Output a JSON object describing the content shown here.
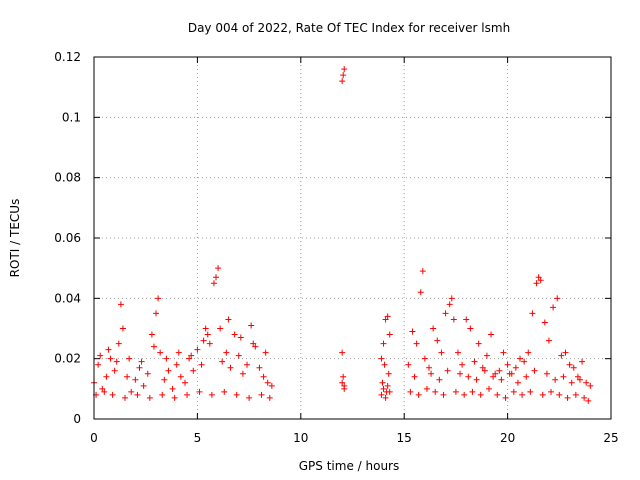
{
  "chart_data": {
    "type": "scatter",
    "title": "Day 004 of 2022, Rate Of TEC Index for receiver lsmh",
    "xlabel": "GPS time / hours",
    "ylabel": "ROTI / TECUs",
    "xlim": [
      0,
      25
    ],
    "ylim": [
      0,
      0.12
    ],
    "xticks": [
      0,
      5,
      10,
      15,
      20,
      25
    ],
    "yticks": [
      0,
      0.02,
      0.04,
      0.06,
      0.08,
      0.1,
      0.12
    ],
    "xtick_labels": [
      "0",
      "5",
      "10",
      "15",
      "20",
      "25"
    ],
    "ytick_labels": [
      "0",
      "0.02",
      "0.04",
      "0.06",
      "0.08",
      "0.1",
      "0.12"
    ],
    "grid": true,
    "marker": "+",
    "color": "#ff0000",
    "series": [
      {
        "x": [
          0.0,
          0.2,
          0.4,
          0.6,
          0.8,
          1.0,
          1.2,
          1.3,
          1.4,
          1.6,
          1.8,
          2.0,
          2.2,
          2.4,
          2.6,
          2.8,
          3.0,
          3.1,
          3.2,
          3.4,
          3.6,
          3.8,
          4.0,
          4.2,
          4.4,
          4.6,
          4.8,
          5.0,
          5.2,
          5.4,
          5.6,
          5.8,
          5.9,
          6.0,
          6.1,
          6.2,
          6.4,
          6.6,
          6.8,
          7.0,
          7.2,
          7.4,
          7.6,
          7.8,
          8.0,
          8.2,
          8.4,
          8.6,
          0.1,
          0.5,
          0.9,
          1.5,
          2.1,
          2.7,
          3.3,
          3.9,
          4.5,
          5.1,
          5.7,
          6.3,
          6.9,
          7.5,
          8.1,
          8.5,
          0.3,
          0.7,
          1.1,
          1.7,
          2.3,
          2.9,
          3.5,
          4.1,
          4.7,
          5.3,
          5.5,
          6.5,
          7.1,
          7.7,
          8.3
        ],
        "y": [
          0.012,
          0.018,
          0.01,
          0.014,
          0.02,
          0.016,
          0.025,
          0.038,
          0.03,
          0.014,
          0.009,
          0.013,
          0.017,
          0.011,
          0.015,
          0.028,
          0.035,
          0.04,
          0.022,
          0.013,
          0.016,
          0.01,
          0.018,
          0.014,
          0.012,
          0.02,
          0.016,
          0.023,
          0.018,
          0.03,
          0.025,
          0.045,
          0.047,
          0.05,
          0.03,
          0.019,
          0.022,
          0.017,
          0.028,
          0.021,
          0.015,
          0.018,
          0.031,
          0.024,
          0.017,
          0.014,
          0.012,
          0.011,
          0.008,
          0.009,
          0.008,
          0.007,
          0.008,
          0.007,
          0.008,
          0.007,
          0.008,
          0.009,
          0.008,
          0.009,
          0.008,
          0.007,
          0.008,
          0.007,
          0.021,
          0.023,
          0.019,
          0.02,
          0.019,
          0.024,
          0.02,
          0.022,
          0.021,
          0.026,
          0.028,
          0.033,
          0.027,
          0.025,
          0.022
        ]
      },
      {
        "x": [
          12.0,
          12.05,
          12.1,
          12.0,
          12.05,
          12.1,
          12.0,
          12.1
        ],
        "y": [
          0.112,
          0.114,
          0.116,
          0.012,
          0.014,
          0.01,
          0.022,
          0.011
        ]
      },
      {
        "x": [
          13.9,
          14.0,
          14.1,
          14.2,
          14.3,
          13.95,
          14.05,
          14.15,
          14.25,
          13.9,
          14.0,
          14.1,
          14.2,
          14.3
        ],
        "y": [
          0.02,
          0.025,
          0.033,
          0.034,
          0.028,
          0.012,
          0.018,
          0.009,
          0.015,
          0.008,
          0.01,
          0.007,
          0.011,
          0.009
        ]
      },
      {
        "x": [
          15.2,
          15.4,
          15.6,
          15.8,
          15.9,
          16.0,
          16.2,
          16.4,
          16.6,
          16.8,
          17.0,
          17.2,
          17.3,
          17.4,
          17.6,
          17.8,
          18.0,
          18.2,
          18.4,
          18.6,
          18.8,
          19.0,
          19.2,
          19.4,
          19.6,
          19.8,
          20.0,
          20.2,
          20.4,
          20.6,
          20.8,
          21.0,
          21.2,
          21.4,
          21.5,
          21.6,
          21.8,
          22.0,
          22.2,
          22.4,
          22.6,
          22.8,
          23.0,
          23.2,
          23.4,
          23.6,
          23.8,
          24.0,
          15.3,
          15.7,
          16.1,
          16.5,
          16.9,
          17.5,
          17.9,
          18.3,
          18.7,
          19.1,
          19.5,
          19.9,
          20.3,
          20.7,
          21.1,
          21.7,
          22.1,
          22.5,
          22.9,
          23.3,
          23.7,
          23.9,
          15.5,
          16.3,
          16.7,
          17.1,
          17.7,
          18.1,
          18.5,
          18.9,
          19.3,
          19.7,
          20.1,
          20.5,
          20.9,
          21.3,
          21.9,
          22.3,
          22.7,
          23.1,
          23.5
        ],
        "y": [
          0.018,
          0.029,
          0.025,
          0.042,
          0.049,
          0.02,
          0.017,
          0.03,
          0.026,
          0.022,
          0.035,
          0.038,
          0.04,
          0.033,
          0.022,
          0.018,
          0.033,
          0.03,
          0.019,
          0.025,
          0.017,
          0.021,
          0.028,
          0.015,
          0.016,
          0.022,
          0.018,
          0.015,
          0.017,
          0.02,
          0.019,
          0.022,
          0.035,
          0.045,
          0.047,
          0.046,
          0.032,
          0.026,
          0.037,
          0.04,
          0.021,
          0.022,
          0.018,
          0.017,
          0.014,
          0.019,
          0.012,
          0.011,
          0.009,
          0.008,
          0.01,
          0.009,
          0.008,
          0.009,
          0.008,
          0.009,
          0.008,
          0.01,
          0.008,
          0.007,
          0.009,
          0.008,
          0.009,
          0.008,
          0.009,
          0.008,
          0.007,
          0.008,
          0.007,
          0.006,
          0.014,
          0.015,
          0.013,
          0.016,
          0.015,
          0.014,
          0.013,
          0.016,
          0.014,
          0.013,
          0.015,
          0.012,
          0.014,
          0.016,
          0.015,
          0.013,
          0.014,
          0.012,
          0.013
        ]
      }
    ]
  }
}
